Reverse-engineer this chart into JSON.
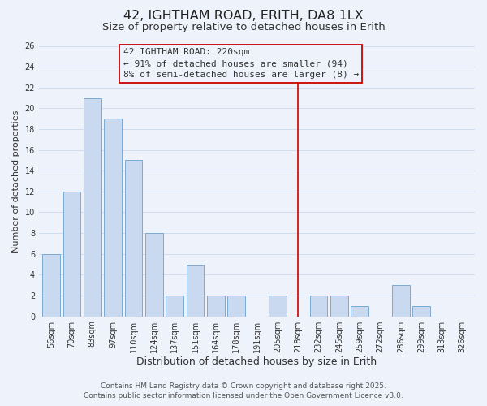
{
  "title": "42, IGHTHAM ROAD, ERITH, DA8 1LX",
  "subtitle": "Size of property relative to detached houses in Erith",
  "xlabel": "Distribution of detached houses by size in Erith",
  "ylabel": "Number of detached properties",
  "bar_labels": [
    "56sqm",
    "70sqm",
    "83sqm",
    "97sqm",
    "110sqm",
    "124sqm",
    "137sqm",
    "151sqm",
    "164sqm",
    "178sqm",
    "191sqm",
    "205sqm",
    "218sqm",
    "232sqm",
    "245sqm",
    "259sqm",
    "272sqm",
    "286sqm",
    "299sqm",
    "313sqm",
    "326sqm"
  ],
  "bar_values": [
    6,
    12,
    21,
    19,
    15,
    8,
    2,
    5,
    2,
    2,
    0,
    2,
    0,
    2,
    2,
    1,
    0,
    3,
    1,
    0,
    0
  ],
  "bar_color": "#c9d9f0",
  "bar_edge_color": "#7aaad0",
  "grid_color": "#d0ddf0",
  "background_color": "#eef2fb",
  "vline_x_index": 12,
  "vline_color": "#cc0000",
  "annotation_text": "42 IGHTHAM ROAD: 220sqm\n← 91% of detached houses are smaller (94)\n8% of semi-detached houses are larger (8) →",
  "annotation_box_edge_color": "#cc0000",
  "ylim": [
    0,
    26
  ],
  "yticks": [
    0,
    2,
    4,
    6,
    8,
    10,
    12,
    14,
    16,
    18,
    20,
    22,
    24,
    26
  ],
  "footer_text": "Contains HM Land Registry data © Crown copyright and database right 2025.\nContains public sector information licensed under the Open Government Licence v3.0.",
  "title_fontsize": 11.5,
  "subtitle_fontsize": 9.5,
  "xlabel_fontsize": 9,
  "ylabel_fontsize": 8,
  "annotation_fontsize": 8,
  "footer_fontsize": 6.5,
  "tick_fontsize": 7
}
